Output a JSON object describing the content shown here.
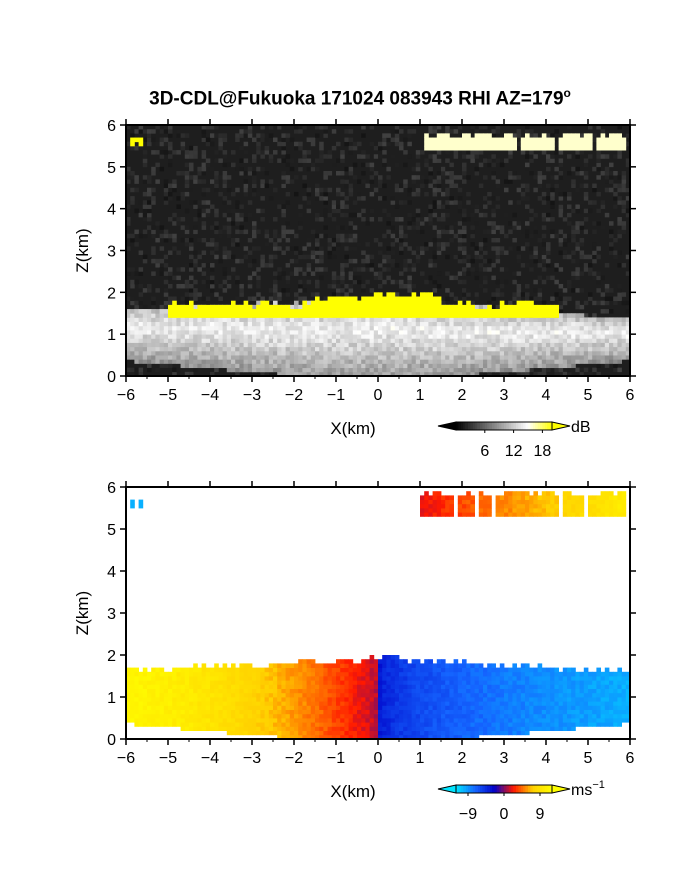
{
  "title": "3D-CDL@Fukuoka 171024 083943 RHI AZ=179",
  "title_sup": "o",
  "chart_data": [
    {
      "type": "heatmap",
      "name": "backscatter-intensity",
      "xlabel": "X(km)",
      "ylabel": "Z(km)",
      "xlim": [
        -6,
        6
      ],
      "ylim": [
        0,
        6
      ],
      "xticks": [
        -6,
        -5,
        -4,
        -3,
        -2,
        -1,
        0,
        1,
        2,
        3,
        4,
        5,
        6
      ],
      "yticks": [
        0,
        1,
        2,
        3,
        4,
        5,
        6
      ],
      "background_color": "#1e1e1e",
      "colorbar": {
        "unit": "dB",
        "ticks": [
          6,
          12,
          18
        ],
        "range": [
          0,
          20
        ],
        "colors": [
          "#000000",
          "#555555",
          "#aaaaaa",
          "#ffffff",
          "#ffff00"
        ]
      },
      "features": [
        {
          "kind": "boundary_layer",
          "x_start": -6,
          "x_end": 6,
          "top_z_at_left": 1.55,
          "top_z_at_center": 1.8,
          "top_z_at_right": 1.3,
          "value": 14
        },
        {
          "kind": "yellow_layer_top",
          "x_start": -5.0,
          "x_end": 4.3,
          "z": 1.5,
          "value": 20
        },
        {
          "kind": "cloud",
          "x_start": 1.0,
          "x_end": 5.9,
          "z_bottom": 5.4,
          "z_top": 5.75,
          "value": 16
        },
        {
          "kind": "cloud",
          "x_start": -5.9,
          "x_end": -5.6,
          "z_bottom": 5.55,
          "z_top": 5.75,
          "value": 20
        }
      ]
    },
    {
      "type": "heatmap",
      "name": "doppler-velocity",
      "xlabel": "X(km)",
      "ylabel": "Z(km)",
      "xlim": [
        -6,
        6
      ],
      "ylim": [
        0,
        6
      ],
      "xticks": [
        -6,
        -5,
        -4,
        -3,
        -2,
        -1,
        0,
        1,
        2,
        3,
        4,
        5,
        6
      ],
      "yticks": [
        0,
        1,
        2,
        3,
        4,
        5,
        6
      ],
      "background_color": "#ffffff",
      "colorbar": {
        "unit": "ms",
        "unit_sup": "-1",
        "ticks": [
          -9,
          0,
          9
        ],
        "range": [
          -12,
          12
        ],
        "colors": [
          "#00e5ff",
          "#1565ff",
          "#0000c8",
          "#ff1800",
          "#ffd000",
          "#ffff00"
        ]
      },
      "features": [
        {
          "kind": "layer_left",
          "x_start": -6,
          "x_end": 0,
          "top_z_at_left": 1.6,
          "top_z_at_right": 1.85,
          "value_at_left": 11,
          "value_at_right": 1
        },
        {
          "kind": "layer_right",
          "x_start": 0,
          "x_end": 6,
          "top_z_at_left": 1.9,
          "top_z_at_right": 1.55,
          "value_at_left": -3,
          "value_at_right": -10
        },
        {
          "kind": "cloud",
          "x_start": 1.0,
          "x_end": 5.9,
          "z_bottom": 5.3,
          "z_top": 5.85,
          "value_at_left": 2,
          "value_at_right": 10
        },
        {
          "kind": "cloud",
          "x_start": -5.9,
          "x_end": -5.6,
          "z_bottom": 5.55,
          "z_top": 5.75,
          "value": -10
        }
      ]
    }
  ]
}
